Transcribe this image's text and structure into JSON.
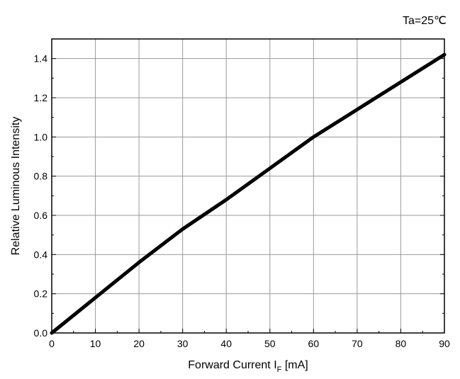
{
  "chart_data": {
    "type": "line",
    "annotation": "Ta=25℃",
    "xlabel": "Forward Current I",
    "xlabel_subscript": "F",
    "xlabel_unit": " [mA]",
    "ylabel": "Relative Luminous Intensity",
    "xlim": [
      0,
      90
    ],
    "ylim": [
      0,
      1.5
    ],
    "xticks": [
      "0",
      "10",
      "20",
      "30",
      "40",
      "50",
      "60",
      "70",
      "80",
      "90"
    ],
    "yticks": [
      "0.0",
      "0.2",
      "0.4",
      "0.6",
      "0.8",
      "1.0",
      "1.2",
      "1.4"
    ],
    "grid": true,
    "series": [
      {
        "x": [
          0,
          10,
          20,
          30,
          40,
          50,
          60,
          70,
          80,
          90
        ],
        "y": [
          0.0,
          0.18,
          0.36,
          0.53,
          0.68,
          0.84,
          1.0,
          1.14,
          1.28,
          1.42
        ],
        "color": "#000000"
      }
    ]
  }
}
